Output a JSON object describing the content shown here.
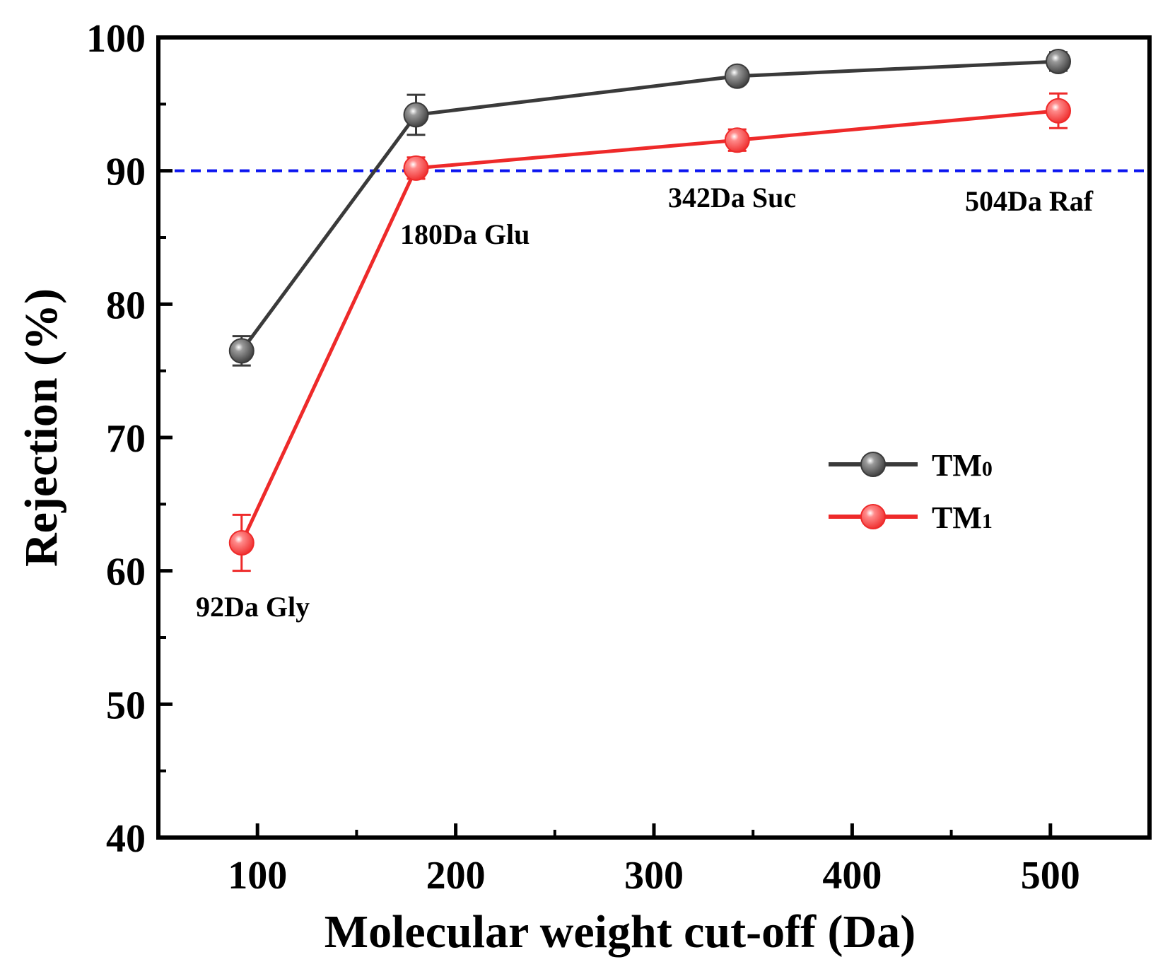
{
  "chart_data": {
    "type": "line",
    "xlabel": "Molecular weight cut-off (Da)",
    "ylabel": "Rejection (%)",
    "xlim": [
      50,
      550
    ],
    "ylim": [
      40,
      100
    ],
    "xticks": [
      100,
      200,
      300,
      400,
      500
    ],
    "yticks": [
      40,
      50,
      60,
      70,
      80,
      90,
      100
    ],
    "x": [
      92,
      180,
      342,
      504
    ],
    "series": [
      {
        "name": "TM",
        "subscript": "0",
        "color": "#3a3a3a",
        "values": [
          76.5,
          94.2,
          97.1,
          98.2
        ],
        "errors": [
          1.1,
          1.5,
          0.4,
          0.7
        ]
      },
      {
        "name": "TM",
        "subscript": "1",
        "color": "#ee2a2a",
        "values": [
          62.1,
          90.2,
          92.3,
          94.5
        ],
        "errors": [
          2.1,
          0.8,
          0.8,
          1.3
        ]
      }
    ],
    "reference_line": {
      "y": 90,
      "color": "#0a14f0",
      "style": "dashed"
    },
    "annotations": [
      "92Da Gly",
      "180Da Glu",
      "342Da Suc",
      "504Da Raf"
    ],
    "legend": "center-right"
  }
}
